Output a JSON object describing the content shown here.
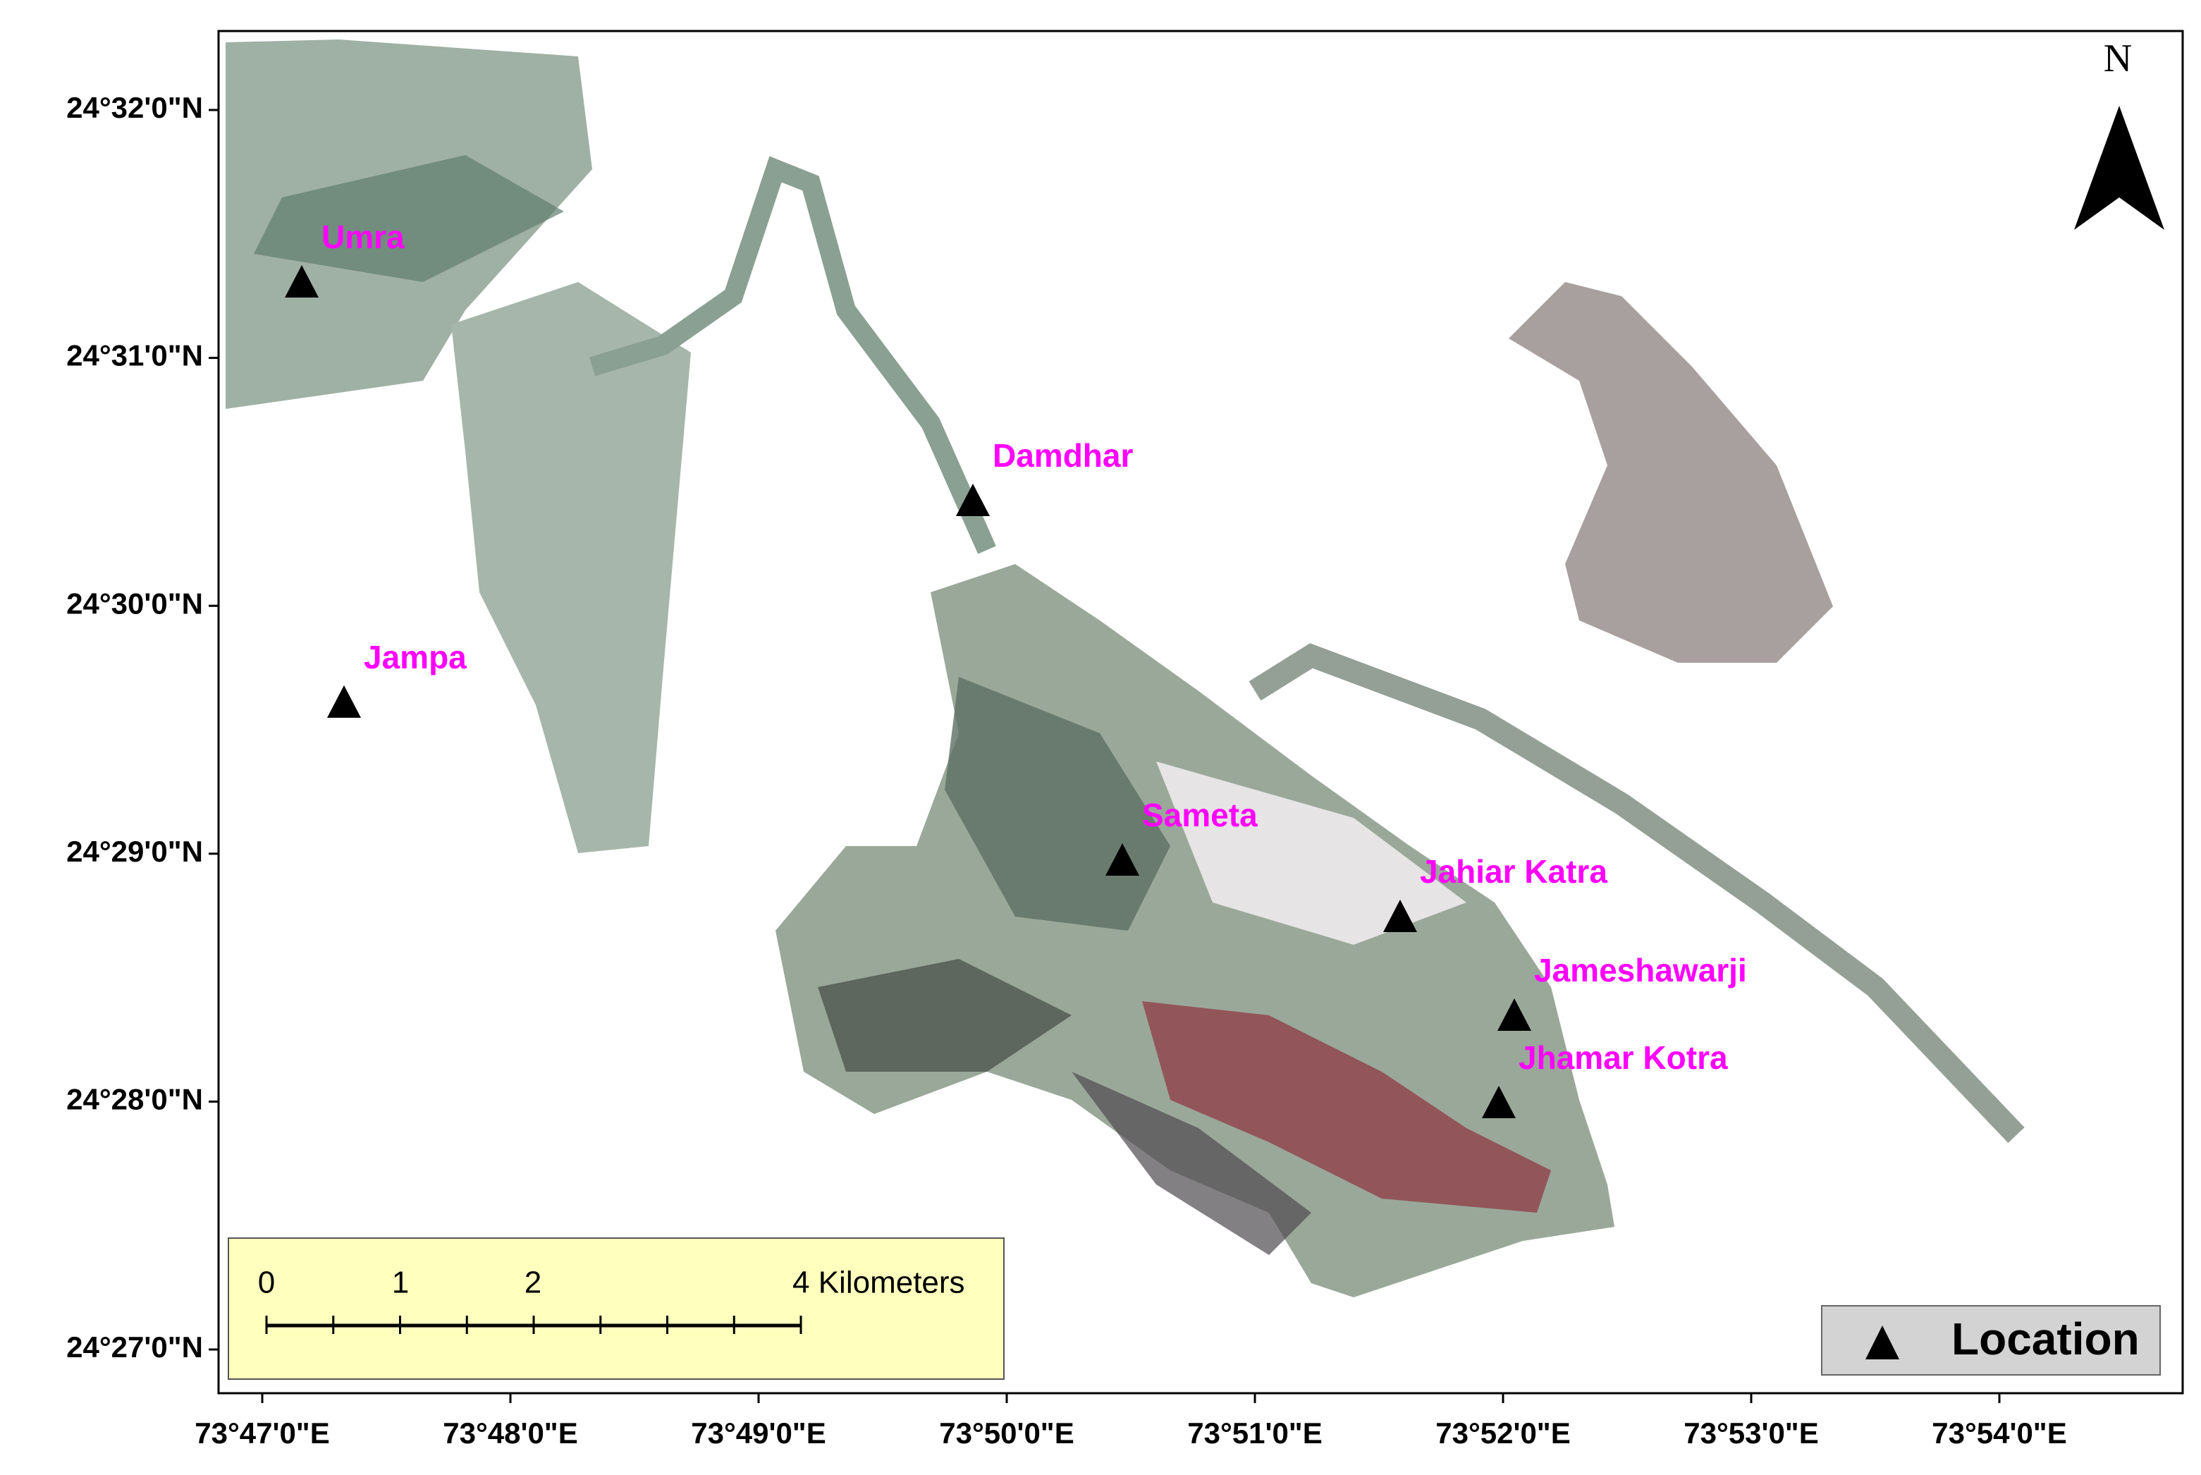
{
  "map": {
    "north": "N",
    "lat_labels": [
      "24°32'0\"N",
      "24°31'0\"N",
      "24°30'0\"N",
      "24°29'0\"N",
      "24°28'0\"N",
      "24°27'0\"N"
    ],
    "lon_labels": [
      "73°47'0\"E",
      "73°48'0\"E",
      "73°49'0\"E",
      "73°50'0\"E",
      "73°51'0\"E",
      "73°52'0\"E",
      "73°53'0\"E",
      "73°54'0\"E"
    ],
    "locations": [
      "Umra",
      "Jampa",
      "Damdhar",
      "Sameta",
      "Jahiar Katra",
      "Jameshawarji",
      "Jhamar Kotra"
    ],
    "scale_bar": {
      "labels": [
        "0",
        "1",
        "2",
        "4 Kilometers"
      ]
    },
    "legend": {
      "label": "Location"
    }
  }
}
